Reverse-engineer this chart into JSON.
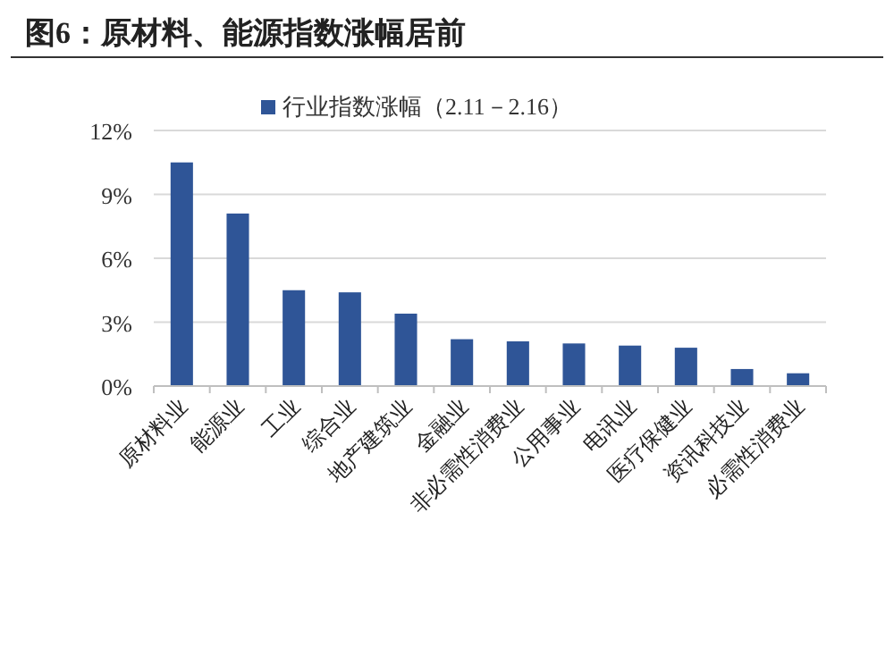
{
  "chart_data": {
    "type": "bar",
    "title": "图6：原材料、能源指数涨幅居前",
    "categories": [
      "原材料业",
      "能源业",
      "工业",
      "综合业",
      "地产建筑业",
      "金融业",
      "非必需性消费业",
      "公用事业",
      "电讯业",
      "医疗保健业",
      "资讯科技业",
      "必需性消费业"
    ],
    "series": [
      {
        "name": "行业指数涨幅（2.11－2.16）",
        "color": "#2f5597",
        "values": [
          10.5,
          8.1,
          4.5,
          4.4,
          3.4,
          2.2,
          2.1,
          2.0,
          1.9,
          1.8,
          0.8,
          0.6
        ]
      }
    ],
    "ylim": [
      0,
      12
    ],
    "yticks": [
      {
        "value": 0,
        "label": "0%"
      },
      {
        "value": 3,
        "label": "3%"
      },
      {
        "value": 6,
        "label": "6%"
      },
      {
        "value": 9,
        "label": "9%"
      },
      {
        "value": 12,
        "label": "12%"
      }
    ],
    "grid": "y",
    "legend": "top"
  }
}
